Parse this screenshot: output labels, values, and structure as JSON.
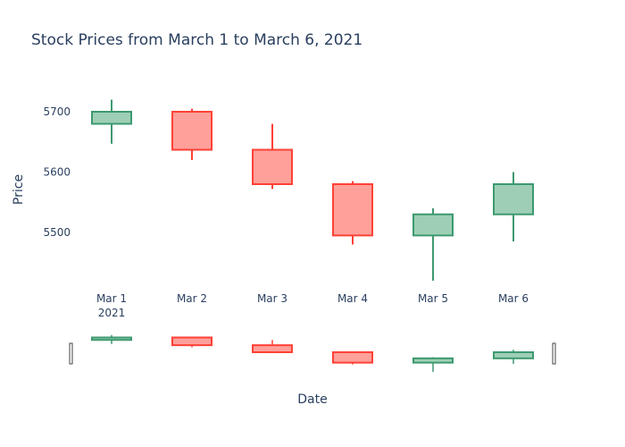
{
  "chart_data": {
    "type": "candlestick",
    "title": "Stock Prices from March 1 to March 6, 2021",
    "xlabel": "Date",
    "ylabel": "Price",
    "x": [
      "Mar 1",
      "Mar 2",
      "Mar 3",
      "Mar 4",
      "Mar 5",
      "Mar 6"
    ],
    "x_year_label": "2021",
    "yticks": [
      5500,
      5600,
      5700
    ],
    "ylim": [
      5405,
      5740
    ],
    "colors": {
      "increasing": "#3d9970",
      "increasing_fill": "#9ecfb6",
      "decreasing": "#ff4136",
      "decreasing_fill": "#ffa09b"
    },
    "series": [
      {
        "date": "Mar 1",
        "open": 5680,
        "high": 5720,
        "low": 5647,
        "close": 5700
      },
      {
        "date": "Mar 2",
        "open": 5700,
        "high": 5705,
        "low": 5620,
        "close": 5637
      },
      {
        "date": "Mar 3",
        "open": 5637,
        "high": 5680,
        "low": 5572,
        "close": 5580
      },
      {
        "date": "Mar 4",
        "open": 5580,
        "high": 5585,
        "low": 5480,
        "close": 5495
      },
      {
        "date": "Mar 5",
        "open": 5495,
        "high": 5540,
        "low": 5420,
        "close": 5530
      },
      {
        "date": "Mar 6",
        "open": 5530,
        "high": 5600,
        "low": 5485,
        "close": 5580
      }
    ],
    "rangeslider": true
  }
}
